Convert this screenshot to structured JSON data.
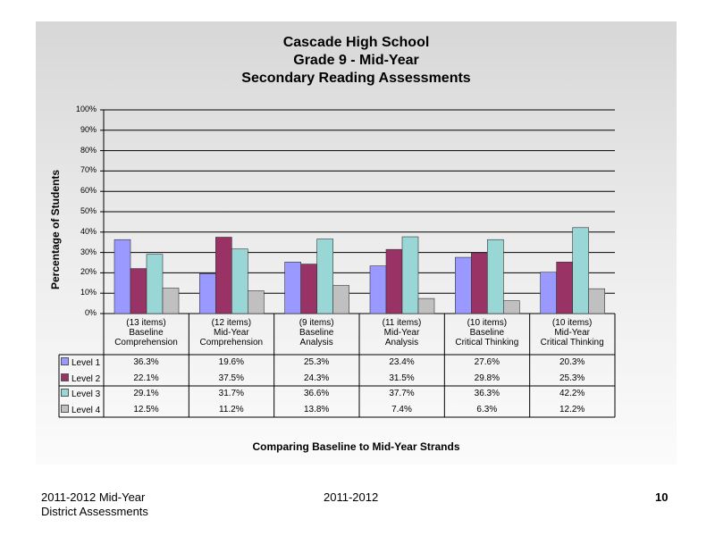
{
  "footer": {
    "left_line1": "2011-2012  Mid-Year",
    "left_line2": "District Assessments",
    "center": "2011-2012",
    "page_number": "10"
  },
  "chart_data": {
    "type": "bar",
    "title": [
      "Cascade High School",
      "Grade 9 - Mid-Year",
      "Secondary Reading Assessments"
    ],
    "ylabel": "Percentage of Students",
    "xlabel": "Comparing Baseline to Mid-Year Strands",
    "ylim": [
      0,
      100
    ],
    "yticks": [
      "0%",
      "10%",
      "20%",
      "30%",
      "40%",
      "50%",
      "60%",
      "70%",
      "80%",
      "90%",
      "100%"
    ],
    "grid": true,
    "categories": [
      "(13 items)\nBaseline\nComprehension",
      "(12 items)\nMid-Year\nComprehension",
      "(9 items)\nBaseline\nAnalysis",
      "(11 items)\nMid-Year\nAnalysis",
      "(10 items)\nBaseline\nCritical Thinking",
      "(10 items)\nMid-Year\nCritical Thinking"
    ],
    "series": [
      {
        "name": "Level 1",
        "color": "#9999ff",
        "values": [
          36.3,
          19.6,
          25.3,
          23.4,
          27.6,
          20.3
        ],
        "labels": [
          "36.3%",
          "19.6%",
          "25.3%",
          "23.4%",
          "27.6%",
          "20.3%"
        ]
      },
      {
        "name": "Level 2",
        "color": "#993366",
        "values": [
          22.1,
          37.5,
          24.3,
          31.5,
          29.8,
          25.3
        ],
        "labels": [
          "22.1%",
          "37.5%",
          "24.3%",
          "31.5%",
          "29.8%",
          "25.3%"
        ]
      },
      {
        "name": "Level 3",
        "color": "#99d6d6",
        "values": [
          29.1,
          31.7,
          36.6,
          37.7,
          36.3,
          42.2
        ],
        "labels": [
          "29.1%",
          "31.7%",
          "36.6%",
          "37.7%",
          "36.3%",
          "42.2%"
        ]
      },
      {
        "name": "Level 4",
        "color": "#c0c0c0",
        "values": [
          12.5,
          11.2,
          13.8,
          7.4,
          6.3,
          12.2
        ],
        "labels": [
          "12.5%",
          "11.2%",
          "13.8%",
          "7.4%",
          "6.3%",
          "12.2%"
        ]
      }
    ]
  }
}
